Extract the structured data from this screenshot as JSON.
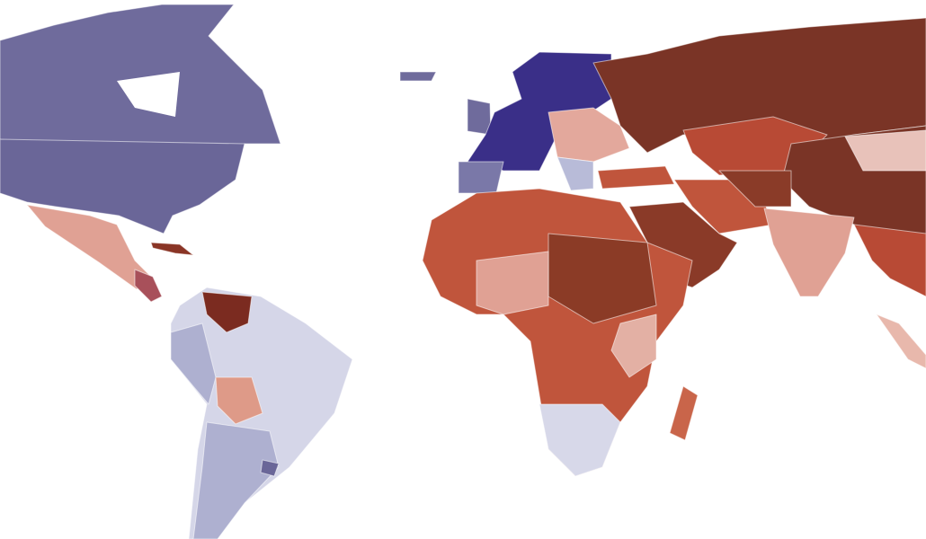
{
  "map": {
    "type": "choropleth"
  }
}
